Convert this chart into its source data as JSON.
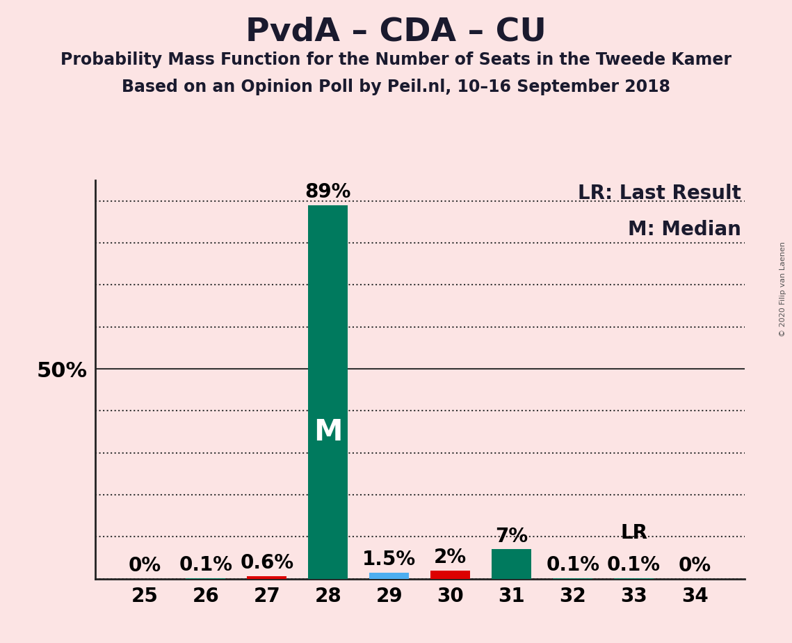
{
  "title": "PvdA – CDA – CU",
  "subtitle1": "Probability Mass Function for the Number of Seats in the Tweede Kamer",
  "subtitle2": "Based on an Opinion Poll by Peil.nl, 10–16 September 2018",
  "copyright": "© 2020 Filip van Laenen",
  "legend_lr": "LR: Last Result",
  "legend_m": "M: Median",
  "background_color": "#fce4e4",
  "categories": [
    25,
    26,
    27,
    28,
    29,
    30,
    31,
    32,
    33,
    34
  ],
  "values": [
    0.0,
    0.1,
    0.6,
    89.0,
    1.5,
    2.0,
    7.0,
    0.1,
    0.1,
    0.0
  ],
  "labels": [
    "0%",
    "0.1%",
    "0.6%",
    "89%",
    "1.5%",
    "2%",
    "7%",
    "0.1%",
    "0.1%",
    "0%"
  ],
  "bar_colors": [
    "#007a5e",
    "#007a5e",
    "#dd0000",
    "#007a5e",
    "#4daef0",
    "#dd0000",
    "#007a5e",
    "#007a5e",
    "#007a5e",
    "#007a5e"
  ],
  "median_seat": 28,
  "lr_seat": 33,
  "ylim": [
    0,
    95
  ],
  "ytick_solid": 50,
  "yticks_dotted": [
    10,
    20,
    30,
    40,
    60,
    70,
    80,
    90
  ],
  "ytick_bottom_dotted": 0,
  "title_fontsize": 34,
  "subtitle_fontsize": 17,
  "bar_label_fontsize": 20,
  "tick_label_fontsize": 20,
  "legend_fontsize": 20,
  "ylabel_fontsize": 22,
  "m_fontsize": 30,
  "lr_label_fontsize": 20
}
